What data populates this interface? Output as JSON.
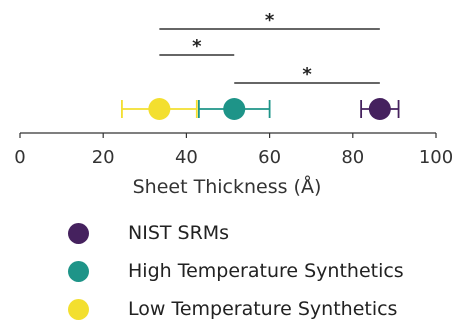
{
  "chart_data": {
    "type": "scatter",
    "xlabel": "Sheet Thickness (Å)",
    "xlim": [
      0,
      100
    ],
    "xticks": [
      0,
      20,
      40,
      60,
      80,
      100
    ],
    "grid": false,
    "legend_position": "bottom-left",
    "series": [
      {
        "name": "NIST SRMs",
        "color": "#45215e",
        "x": 86.5,
        "error": 4.5
      },
      {
        "name": "High Temperature Synthetics",
        "color": "#1e9488",
        "x": 51.5,
        "error": 8.5
      },
      {
        "name": "Low Temperature Synthetics",
        "color": "#f3df2f",
        "x": 33.5,
        "error": 9.0
      }
    ],
    "significance": [
      {
        "from": 33.5,
        "to": 86.5,
        "label": "*"
      },
      {
        "from": 33.5,
        "to": 51.5,
        "label": "*"
      },
      {
        "from": 51.5,
        "to": 86.5,
        "label": "*"
      }
    ]
  }
}
